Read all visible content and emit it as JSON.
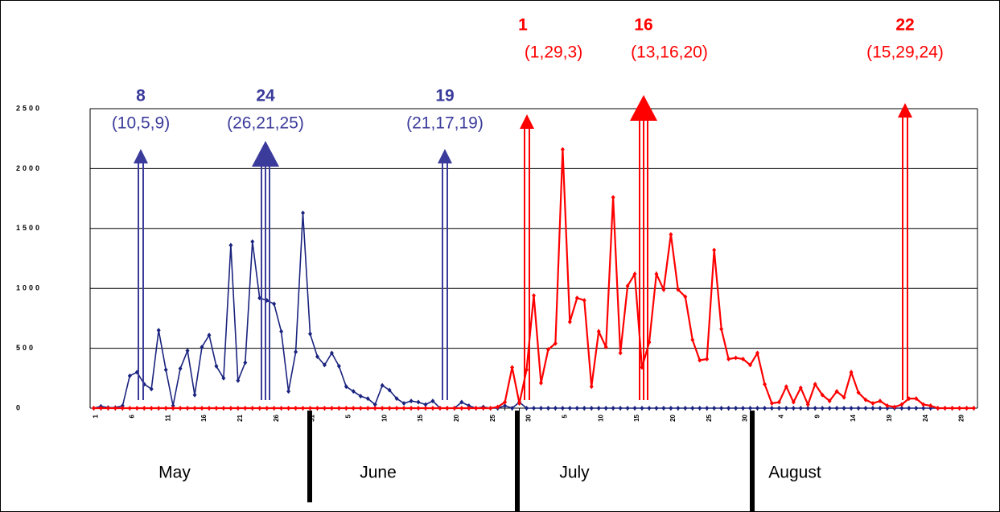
{
  "chart_data": {
    "type": "line",
    "categories": [
      "1",
      null,
      null,
      null,
      null,
      "6",
      null,
      null,
      null,
      null,
      "11",
      null,
      null,
      null,
      null,
      "16",
      null,
      null,
      null,
      null,
      "21",
      null,
      null,
      null,
      null,
      "26",
      null,
      null,
      null,
      null,
      "31",
      null,
      null,
      null,
      null,
      "5",
      null,
      null,
      null,
      null,
      "10",
      null,
      null,
      null,
      null,
      "15",
      null,
      null,
      null,
      null,
      "20",
      null,
      null,
      null,
      null,
      "25",
      null,
      null,
      null,
      null,
      "30",
      null,
      null,
      null,
      null,
      "5",
      null,
      null,
      null,
      null,
      "10",
      null,
      null,
      null,
      null,
      "15",
      null,
      null,
      null,
      null,
      "20",
      null,
      null,
      null,
      null,
      "25",
      null,
      null,
      null,
      null,
      "30",
      null,
      null,
      null,
      null,
      "4",
      null,
      null,
      null,
      null,
      "9",
      null,
      null,
      null,
      null,
      "14",
      null,
      null,
      null,
      null,
      "19",
      null,
      null,
      null,
      null,
      "24",
      null,
      null,
      null,
      null,
      "29",
      null,
      null
    ],
    "months": [
      "May",
      "June",
      "July",
      "August"
    ],
    "series": [
      {
        "color": "#1a237e",
        "values": [
          0,
          15,
          5,
          5,
          20,
          270,
          300,
          200,
          160,
          650,
          320,
          20,
          330,
          480,
          110,
          510,
          610,
          350,
          250,
          1360,
          230,
          380,
          1390,
          920,
          900,
          870,
          640,
          140,
          470,
          1630,
          620,
          430,
          360,
          460,
          350,
          180,
          140,
          100,
          80,
          30,
          190,
          150,
          80,
          40,
          60,
          50,
          30,
          60,
          0,
          0,
          0,
          50,
          20,
          0,
          10,
          0,
          0,
          20,
          0,
          50,
          0,
          0,
          0,
          0,
          0,
          0,
          0,
          0,
          0,
          0,
          0,
          0,
          0,
          0,
          0,
          0,
          0,
          0,
          0,
          0,
          0,
          0,
          0,
          0,
          0,
          0,
          0,
          0,
          0,
          0,
          0,
          0,
          0,
          0,
          0,
          0,
          0,
          0,
          0,
          0,
          0,
          0,
          0,
          0,
          0,
          0,
          0,
          0,
          0,
          0,
          0,
          0,
          0,
          0,
          0,
          0,
          0,
          0,
          0,
          0,
          0,
          0,
          0
        ]
      },
      {
        "color": "#ff0000",
        "values": [
          0,
          0,
          0,
          0,
          0,
          0,
          0,
          0,
          0,
          0,
          0,
          0,
          0,
          0,
          0,
          0,
          0,
          0,
          0,
          0,
          0,
          0,
          0,
          0,
          0,
          0,
          0,
          0,
          0,
          0,
          0,
          0,
          0,
          0,
          0,
          0,
          0,
          0,
          0,
          0,
          0,
          0,
          0,
          0,
          0,
          0,
          0,
          0,
          0,
          0,
          0,
          0,
          0,
          0,
          0,
          0,
          10,
          50,
          340,
          40,
          320,
          940,
          210,
          490,
          540,
          2160,
          720,
          920,
          900,
          180,
          640,
          510,
          1760,
          460,
          1020,
          1120,
          340,
          550,
          1120,
          990,
          1450,
          990,
          930,
          570,
          400,
          410,
          1320,
          660,
          410,
          420,
          410,
          360,
          460,
          200,
          40,
          50,
          180,
          50,
          170,
          30,
          200,
          110,
          60,
          140,
          90,
          300,
          130,
          70,
          40,
          60,
          20,
          10,
          30,
          80,
          80,
          30,
          20,
          0,
          0,
          0,
          0,
          0,
          0
        ]
      }
    ],
    "annotations": [
      {
        "label": "8",
        "detail": "(10,5,9)",
        "color": "#3b3b9b"
      },
      {
        "label": "24",
        "detail": "(26,21,25)",
        "color": "#3b3b9b"
      },
      {
        "label": "19",
        "detail": "(21,17,19)",
        "color": "#3b3b9b"
      },
      {
        "label": "1",
        "detail": "(1,29,3)",
        "color": "#ff0000"
      },
      {
        "label": "16",
        "detail": "(13,16,20)",
        "color": "#ff0000"
      },
      {
        "label": "22",
        "detail": "(15,29,24)",
        "color": "#ff0000"
      }
    ],
    "ylim": [
      0,
      2500
    ],
    "yticks": [
      0,
      500,
      1000,
      1500,
      2000,
      2500
    ],
    "grid": true
  }
}
